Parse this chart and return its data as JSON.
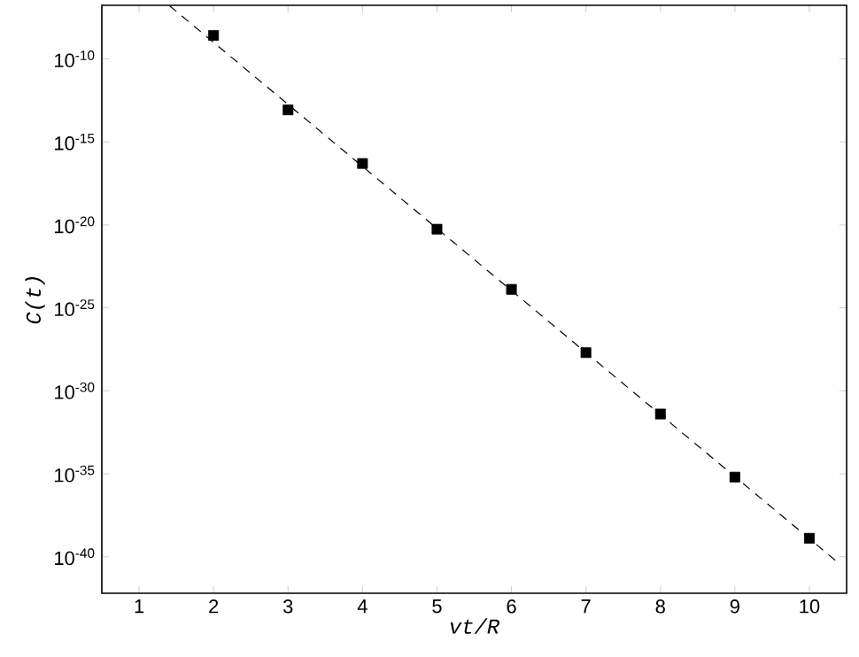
{
  "chart_data": {
    "type": "scatter",
    "xlabel": "vt/R",
    "ylabel": "C(t)",
    "log": "y",
    "xlim": [
      0.5,
      10.5
    ],
    "xticks": [
      1,
      2,
      3,
      4,
      5,
      6,
      7,
      8,
      9,
      10
    ],
    "ylim": [
      6.3e-43,
      1.7e-07
    ],
    "yticks": [
      {
        "value": 1e-10,
        "label": "10$^{-10}$"
      },
      {
        "value": 1e-15,
        "label": "10$^{-15}$"
      },
      {
        "value": 1e-20,
        "label": "10$^{-20}$"
      },
      {
        "value": 1e-25,
        "label": "10$^{-25}$"
      },
      {
        "value": 1e-30,
        "label": "10$^{-30}$"
      },
      {
        "value": 1e-35,
        "label": "10$^{-35}$"
      },
      {
        "value": 1e-40,
        "label": "10$^{-40}$"
      }
    ],
    "series": [
      {
        "marker": "square",
        "color": "#000000",
        "x": [
          2,
          3,
          4,
          5,
          6,
          7,
          8,
          9,
          10
        ],
        "values": [
          2.6e-09,
          8.5e-14,
          5e-17,
          5.5e-21,
          1.3e-24,
          2e-28,
          4e-32,
          6.3e-36,
          1.3e-39
        ]
      },
      {
        "type": "line",
        "marker": "none",
        "line_style": "dashed",
        "color": "#000000",
        "x": [
          1.41,
          10.35
        ],
        "values": [
          1.6e-07,
          6e-41
        ]
      }
    ]
  }
}
